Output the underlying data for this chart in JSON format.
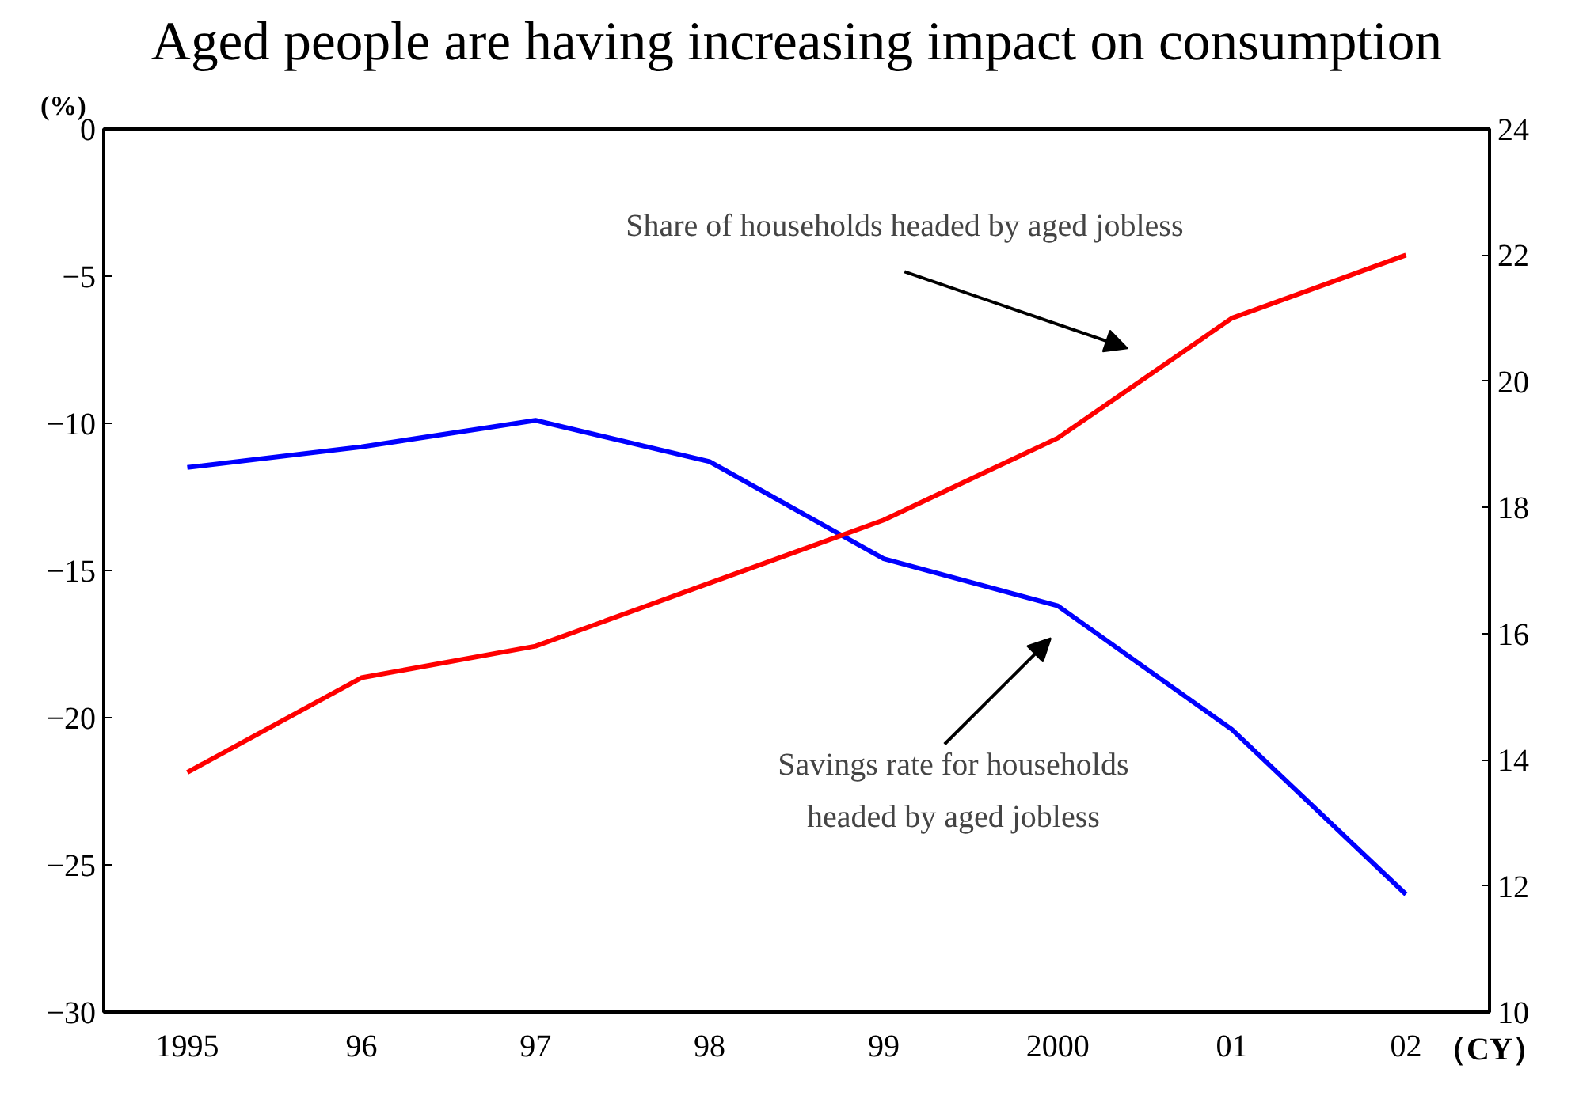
{
  "chart_data": {
    "type": "line",
    "title": "Aged people are having increasing impact on consumption",
    "ylabel": "(%)",
    "xlabel": "（CY）",
    "categories": [
      "1995",
      "96",
      "97",
      "98",
      "99",
      "2000",
      "01",
      "02"
    ],
    "series": [
      {
        "name": "Savings rate for households headed by aged jobless",
        "color": "#0000ff",
        "values": [
          -11.5,
          -10.8,
          -9.9,
          -11.3,
          -14.6,
          -16.2,
          -20.4,
          -26.0
        ]
      },
      {
        "name": "Share of households headed by aged jobless",
        "color": "#ff0000",
        "axis": "y2",
        "values": [
          13.8,
          15.3,
          15.8,
          16.8,
          17.8,
          19.1,
          21.0,
          22.0
        ]
      }
    ],
    "ylim": [
      -30,
      0
    ],
    "yticks": [
      -30,
      -25,
      -20,
      -15,
      -10,
      -5,
      0
    ],
    "y2lim": [
      10,
      24
    ],
    "y2ticks": [
      10,
      12,
      14,
      16,
      18,
      20,
      22,
      24
    ],
    "grid": false,
    "marker": "none",
    "line_style": "solid"
  }
}
